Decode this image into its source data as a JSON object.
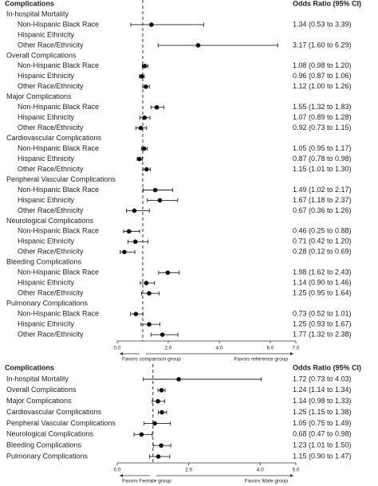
{
  "chart_data": [
    {
      "type": "forest",
      "header_left": "Complications",
      "header_right": "Odds Ratio (95% CI)",
      "xlim": [
        0,
        7
      ],
      "xticks": [
        {
          "value": 0,
          "label": "0.0"
        },
        {
          "value": 2,
          "label": "2.0"
        },
        {
          "value": 4,
          "label": "4.0"
        },
        {
          "value": 6,
          "label": "6.0"
        },
        {
          "value": 7,
          "label": "7.0"
        }
      ],
      "reference": 1,
      "left_note": "Favors comparison group",
      "right_note": "Favors reference group",
      "groups": [
        {
          "name": "In-hospital Mortality",
          "rows": [
            {
              "label": "Non-Hispanic Black Race",
              "value": 1.34,
              "low": 0.53,
              "high": 3.39,
              "value_label": "1.34 (0.53 to 3.39)"
            },
            {
              "label": "Hispanic Ethnicity",
              "value": null,
              "low": null,
              "high": null,
              "value_label": null
            },
            {
              "label": "Other Race/Ethnicity",
              "value": 3.17,
              "low": 1.6,
              "high": 6.29,
              "value_label": "3.17 (1.60 to 6.29)"
            }
          ]
        },
        {
          "name": "Overall Complications",
          "rows": [
            {
              "label": "Non-Hispanic Black Race",
              "value": 1.08,
              "low": 0.98,
              "high": 1.2,
              "value_label": "1.08 (0.98 to 1.20)"
            },
            {
              "label": "Hispanic Ethnicity",
              "value": 0.96,
              "low": 0.87,
              "high": 1.06,
              "value_label": "0.96 (0.87 to 1.06)"
            },
            {
              "label": "Other Race/Ethnicity",
              "value": 1.12,
              "low": 1.0,
              "high": 1.26,
              "value_label": "1.12 (1.00 to 1.26)"
            }
          ]
        },
        {
          "name": "Major Complications",
          "rows": [
            {
              "label": "Non-Hispanic Black Race",
              "value": 1.55,
              "low": 1.32,
              "high": 1.83,
              "value_label": "1.55 (1.32 to 1.83)"
            },
            {
              "label": "Hispanic Ethnicity",
              "value": 1.07,
              "low": 0.89,
              "high": 1.28,
              "value_label": "1.07 (0.89 to 1.28)"
            },
            {
              "label": "Other Race/Ethnicity",
              "value": 0.92,
              "low": 0.73,
              "high": 1.15,
              "value_label": "0.92 (0.73 to 1.15)"
            }
          ]
        },
        {
          "name": "Cardiovascular Complications",
          "rows": [
            {
              "label": "Non-Hispanic Black Race",
              "value": 1.05,
              "low": 0.95,
              "high": 1.17,
              "value_label": "1.05 (0.95 to 1.17)"
            },
            {
              "label": "Hispanic Ethnicity",
              "value": 0.87,
              "low": 0.78,
              "high": 0.98,
              "value_label": "0.87 (0.78 to 0.98)"
            },
            {
              "label": "Other Race/Ethnicity",
              "value": 1.15,
              "low": 1.01,
              "high": 1.3,
              "value_label": "1.15 (1.01 to 1.30)"
            }
          ]
        },
        {
          "name": "Peripheral Vascular Complications",
          "rows": [
            {
              "label": "Non-Hispanic Black Race",
              "value": 1.49,
              "low": 1.02,
              "high": 2.17,
              "value_label": "1.49 (1.02 to 2.17)"
            },
            {
              "label": "Hispanic Ethnicity",
              "value": 1.67,
              "low": 1.18,
              "high": 2.37,
              "value_label": "1.67 (1.18 to 2.37)"
            },
            {
              "label": "Other Race/Ethnicity",
              "value": 0.67,
              "low": 0.36,
              "high": 1.26,
              "value_label": "0.67 (0.36 to 1.26)"
            }
          ]
        },
        {
          "name": "Neurological Complications",
          "rows": [
            {
              "label": "Non-Hispanic Black Race",
              "value": 0.46,
              "low": 0.25,
              "high": 0.88,
              "value_label": "0.46 (0.25 to 0.88)"
            },
            {
              "label": "Hispanic Ethnicity",
              "value": 0.71,
              "low": 0.42,
              "high": 1.2,
              "value_label": "0.71 (0.42 to 1.20)"
            },
            {
              "label": "Other Race/Ethnicity",
              "value": 0.28,
              "low": 0.12,
              "high": 0.69,
              "value_label": "0.28 (0.12 to 0.69)"
            }
          ]
        },
        {
          "name": "Bleeding Complications",
          "rows": [
            {
              "label": "Non-Hispanic Black Race",
              "value": 1.98,
              "low": 1.62,
              "high": 2.43,
              "value_label": "1.98 (1.62 to 2.43)"
            },
            {
              "label": "Hispanic Ethnicity",
              "value": 1.14,
              "low": 0.9,
              "high": 1.46,
              "value_label": "1.14 (0.90 to 1.46)"
            },
            {
              "label": "Other Race/Ethnicity",
              "value": 1.25,
              "low": 0.95,
              "high": 1.64,
              "value_label": "1.25 (0.95 to 1.64)"
            }
          ]
        },
        {
          "name": "Pulmonary Complications",
          "rows": [
            {
              "label": "Non-Hispanic Black Race",
              "value": 0.73,
              "low": 0.52,
              "high": 1.01,
              "value_label": "0.73 (0.52 to 1.01)"
            },
            {
              "label": "Hispanic Ethnicity",
              "value": 1.25,
              "low": 0.93,
              "high": 1.67,
              "value_label": "1.25 (0.93 to 1.67)"
            },
            {
              "label": "Other Race/Ethnicity",
              "value": 1.77,
              "low": 1.32,
              "high": 2.38,
              "value_label": "1.77 (1.32 to 2.38)"
            }
          ]
        }
      ]
    },
    {
      "type": "forest",
      "header_left": "Complications",
      "header_right": "Odds Ratio (95% CI)",
      "xlim": [
        0,
        5
      ],
      "xticks": [
        {
          "value": 0,
          "label": "0.0"
        },
        {
          "value": 2,
          "label": "2.0"
        },
        {
          "value": 4,
          "label": "4.0"
        },
        {
          "value": 5,
          "label": "5.0"
        }
      ],
      "reference": 1,
      "left_note": "Favors Female group",
      "right_note": "Favors Male group",
      "rows": [
        {
          "label": "In-hospital Mortality",
          "value": 1.72,
          "low": 0.73,
          "high": 4.03,
          "value_label": "1.72 (0.73 to 4.03)"
        },
        {
          "label": "Overall Complications",
          "value": 1.24,
          "low": 1.14,
          "high": 1.34,
          "value_label": "1.24 (1.14 to 1.34)"
        },
        {
          "label": "Major Complications",
          "value": 1.14,
          "low": 0.98,
          "high": 1.33,
          "value_label": "1.14 (0.98 to 1.33)"
        },
        {
          "label": "Cardiovascular Complications",
          "value": 1.25,
          "low": 1.15,
          "high": 1.38,
          "value_label": "1.25 (1.15 to 1.38)"
        },
        {
          "label": "Peripheral Vascular Complications",
          "value": 1.05,
          "low": 0.75,
          "high": 1.49,
          "value_label": "1.05 (0.75 to 1.49)"
        },
        {
          "label": "Neurological Complications",
          "value": 0.68,
          "low": 0.47,
          "high": 0.98,
          "value_label": "0.68 (0.47 to 0.98)"
        },
        {
          "label": "Bleeding Complications",
          "value": 1.23,
          "low": 1.01,
          "high": 1.5,
          "value_label": "1.23 (1.01 to 1.50)"
        },
        {
          "label": "Pulmonary Complications",
          "value": 1.15,
          "low": 0.9,
          "high": 1.47,
          "value_label": "1.15 (0.90 to 1.47)"
        }
      ]
    }
  ]
}
